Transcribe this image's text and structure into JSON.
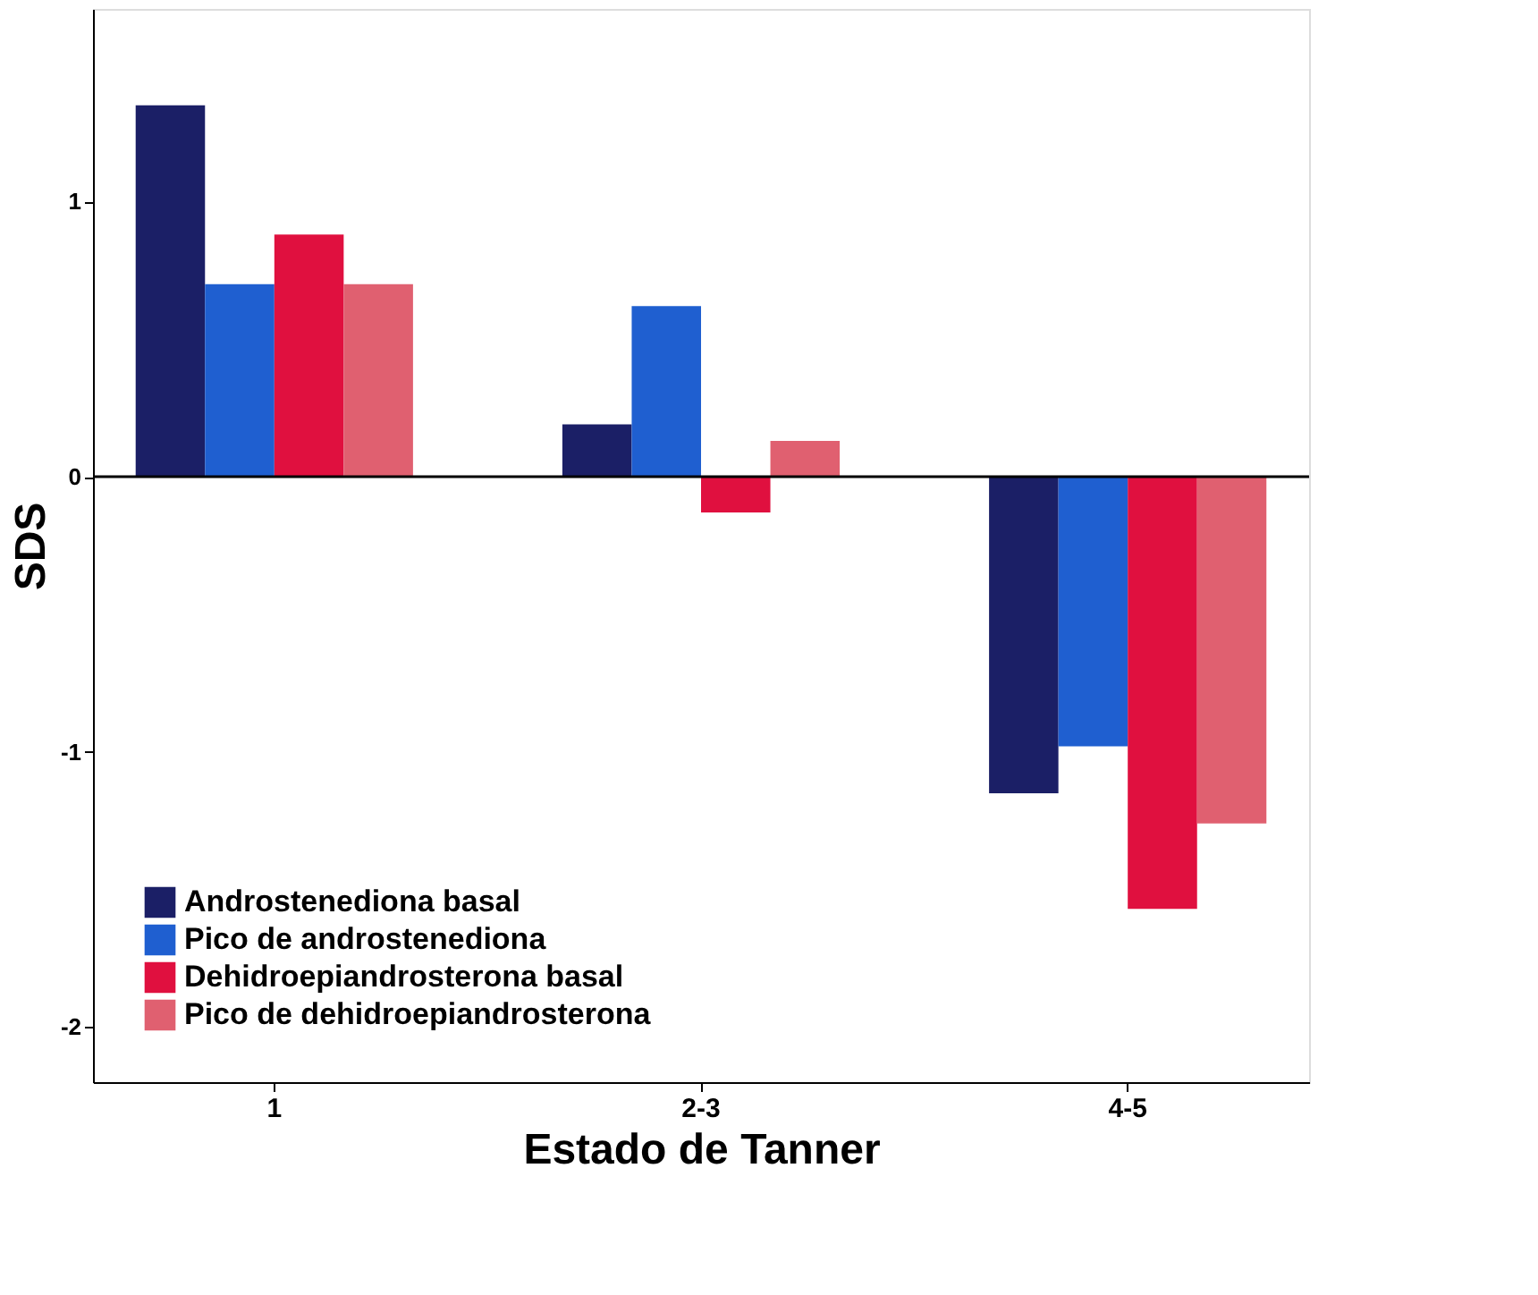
{
  "chart_data": {
    "type": "bar",
    "xlabel": "Estado de Tanner",
    "ylabel": "SDS",
    "categories": [
      "1",
      "2-3",
      "4-5"
    ],
    "series": [
      {
        "name": "Androstenediona basal",
        "color": "#1b1f66",
        "values": [
          1.35,
          0.19,
          -1.15
        ]
      },
      {
        "name": "Pico de androstenediona",
        "color": "#1f5fd0",
        "values": [
          0.7,
          0.62,
          -0.98
        ]
      },
      {
        "name": "Dehidroepiandrosterona basal",
        "color": "#e0103f",
        "values": [
          0.88,
          -0.13,
          -1.57
        ]
      },
      {
        "name": "Pico de dehidroepiandrosterona",
        "color": "#e06070",
        "values": [
          0.7,
          0.13,
          -1.26
        ]
      }
    ],
    "ylim": [
      -2.2,
      1.7
    ],
    "yticks": [
      -2,
      -1,
      0,
      1
    ],
    "grid": false,
    "legend": "bottom left",
    "ref_lines": [
      {
        "axis": "y",
        "value": 0,
        "color": "#000000"
      }
    ]
  }
}
